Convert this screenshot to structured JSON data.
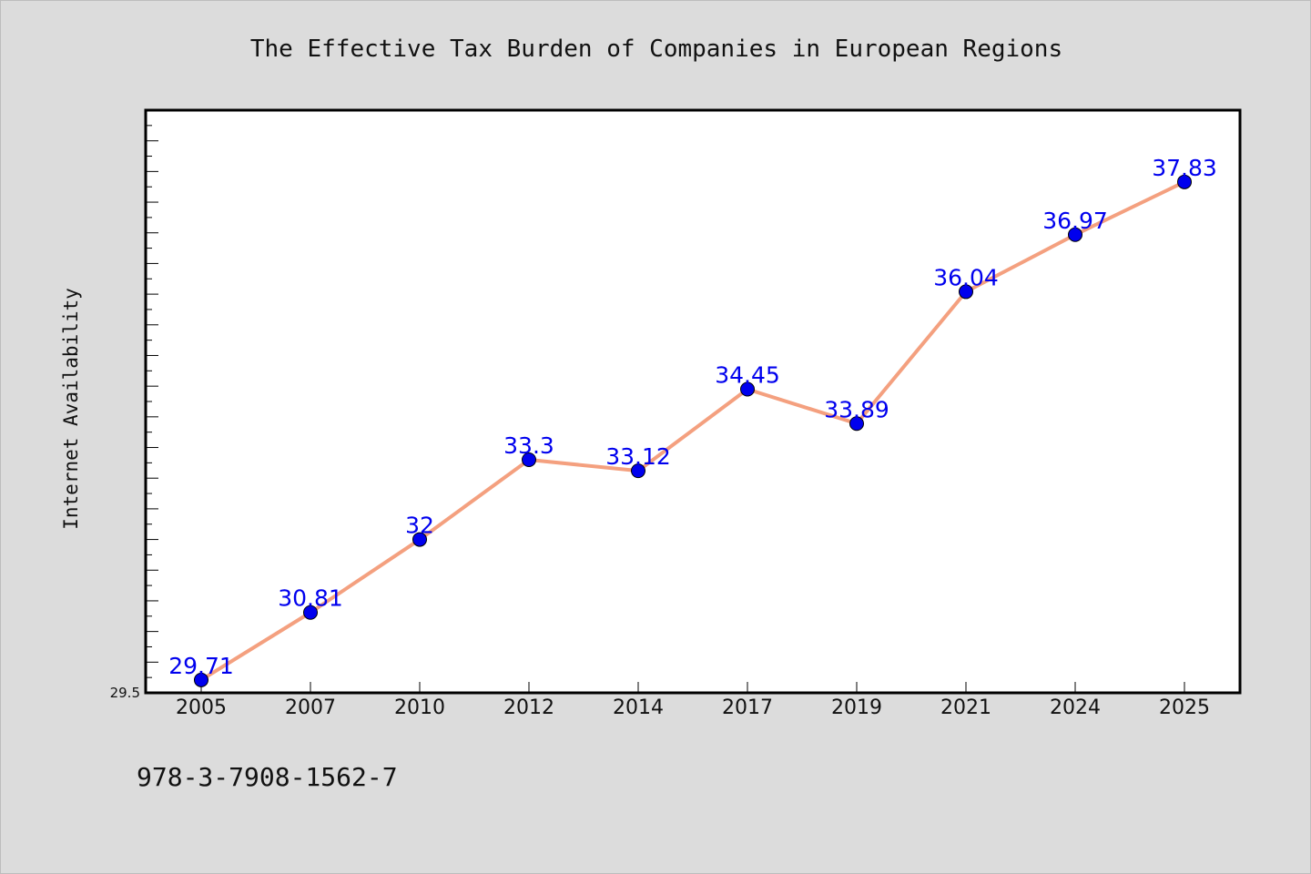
{
  "chart_data": {
    "type": "line",
    "title": "The Effective Tax Burden of Companies in European Regions",
    "xlabel": "",
    "ylabel": "Internet Availability",
    "categories": [
      "2005",
      "2007",
      "2010",
      "2012",
      "2014",
      "2017",
      "2019",
      "2021",
      "2024",
      "2025"
    ],
    "series": [
      {
        "values": [
          29.71,
          30.81,
          32,
          33.3,
          33.12,
          34.45,
          33.89,
          36.04,
          36.97,
          37.83
        ],
        "labels": [
          "29.71",
          "30.81",
          "32",
          "33.3",
          "33.12",
          "34.45",
          "33.89",
          "36.04",
          "36.97",
          "37.83"
        ],
        "line_color": "#f4a07f",
        "marker_color": "#0000ee",
        "label_color": "#0000ee"
      }
    ],
    "ylim": [
      29.5,
      39
    ],
    "ytick_labels": [
      "29.5"
    ],
    "grid": false,
    "legend": "none"
  },
  "footer": {
    "isbn": "978-3-7908-1562-7"
  },
  "colors": {
    "background": "#dcdcdc",
    "plot_area": "#ffffff",
    "axis": "#000000"
  }
}
